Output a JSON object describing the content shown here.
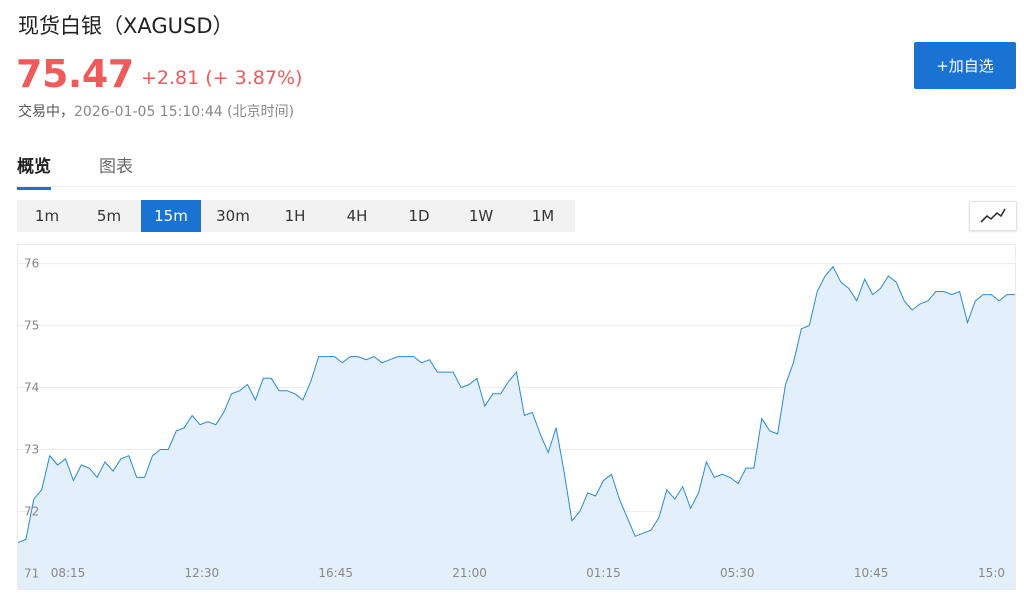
{
  "header": {
    "title": "现货白银（XAGUSD）",
    "price": "75.47",
    "change": "+2.81 (+ 3.87%)",
    "status": "交易中，",
    "timestamp": "2026-01-05 15:10:44 (北京时间)",
    "follow_label": "+加自选"
  },
  "tabs": [
    {
      "label": "概览",
      "active": true
    },
    {
      "label": "图表",
      "active": false
    }
  ],
  "intervals": [
    {
      "label": "1m"
    },
    {
      "label": "5m"
    },
    {
      "label": "15m",
      "active": true
    },
    {
      "label": "30m"
    },
    {
      "label": "1H"
    },
    {
      "label": "4H"
    },
    {
      "label": "1D"
    },
    {
      "label": "1W"
    },
    {
      "label": "1M"
    }
  ],
  "colors": {
    "accent": "#1a73d2",
    "up": "#f05a5a",
    "line": "#2b8ad6",
    "fill": "#e3f0fc"
  },
  "chart_data": {
    "type": "area",
    "x_ticks": [
      "08:15",
      "12:30",
      "16:45",
      "21:00",
      "01:15",
      "05:30",
      "10:45",
      "15:0"
    ],
    "y_ticks": [
      71,
      72,
      73,
      74,
      75,
      76
    ],
    "ylim": [
      70.75,
      76.3
    ],
    "grid": true,
    "values": [
      71.5,
      71.55,
      72.2,
      72.35,
      72.9,
      72.75,
      72.85,
      72.5,
      72.75,
      72.7,
      72.55,
      72.8,
      72.65,
      72.85,
      72.9,
      72.55,
      72.55,
      72.9,
      73.0,
      73.0,
      73.3,
      73.35,
      73.55,
      73.4,
      73.45,
      73.4,
      73.6,
      73.9,
      73.95,
      74.05,
      73.8,
      74.15,
      74.15,
      73.95,
      73.95,
      73.9,
      73.8,
      74.1,
      74.5,
      74.5,
      74.5,
      74.4,
      74.5,
      74.5,
      74.45,
      74.5,
      74.4,
      74.45,
      74.5,
      74.5,
      74.5,
      74.4,
      74.45,
      74.25,
      74.25,
      74.25,
      74.0,
      74.05,
      74.15,
      73.7,
      73.9,
      73.9,
      74.1,
      74.25,
      73.55,
      73.6,
      73.25,
      72.95,
      73.35,
      72.65,
      71.85,
      72.0,
      72.3,
      72.25,
      72.5,
      72.6,
      72.2,
      71.9,
      71.6,
      71.65,
      71.7,
      71.9,
      72.35,
      72.2,
      72.4,
      72.05,
      72.3,
      72.8,
      72.55,
      72.6,
      72.55,
      72.45,
      72.7,
      72.7,
      73.5,
      73.3,
      73.25,
      74.05,
      74.4,
      74.95,
      75.0,
      75.55,
      75.8,
      75.95,
      75.7,
      75.6,
      75.4,
      75.75,
      75.5,
      75.6,
      75.8,
      75.7,
      75.4,
      75.25,
      75.35,
      75.4,
      75.55,
      75.55,
      75.5,
      75.55,
      75.05,
      75.4,
      75.5,
      75.5,
      75.4,
      75.5,
      75.5
    ]
  }
}
